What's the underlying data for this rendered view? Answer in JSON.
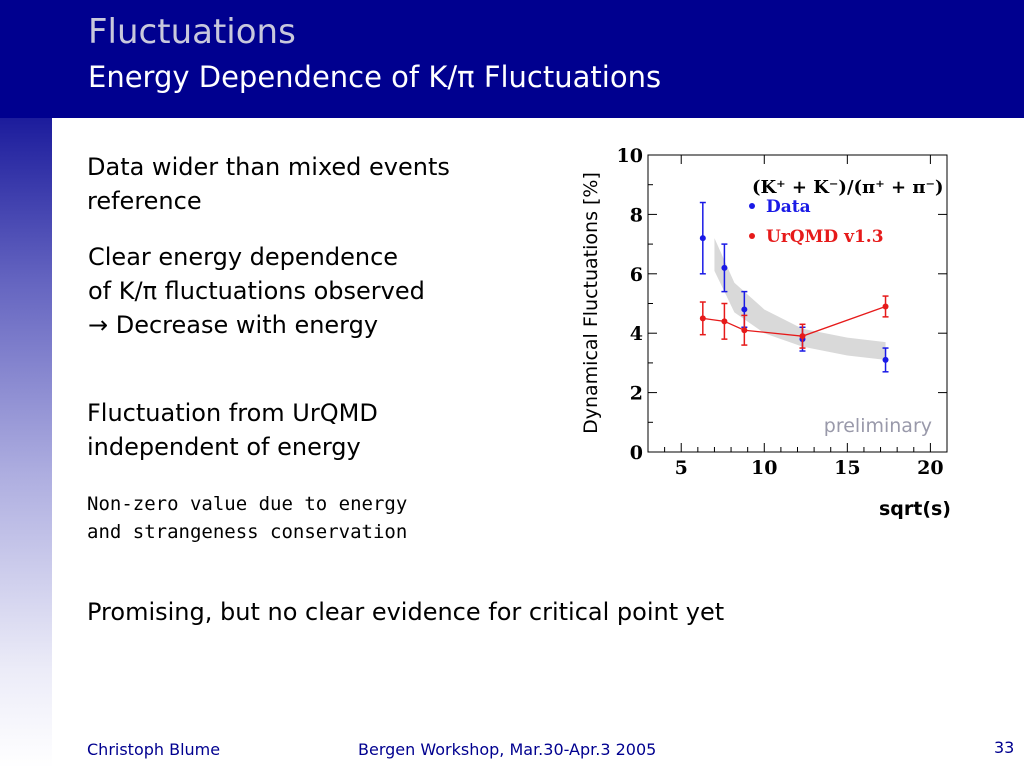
{
  "header": {
    "title": "Fluctuations",
    "subtitle": "Energy Dependence of K/π Fluctuations"
  },
  "bullets": {
    "b1": [
      "Data wider than mixed events",
      "reference"
    ],
    "b2": [
      "Clear energy dependence",
      "of K/π fluctuations observed",
      "→ Decrease with energy"
    ],
    "b3": [
      "Fluctuation from UrQMD",
      "independent of energy"
    ],
    "b4": [
      "Non-zero value due to energy",
      "and strangeness conservation"
    ],
    "b5": "Promising, but no clear evidence for critical point yet"
  },
  "footer": {
    "author": "Christoph Blume",
    "event": "Bergen Workshop, Mar.30-Apr.3 2005",
    "page": "33"
  },
  "colors": {
    "header_bg": "#00008f",
    "data": "#1a1ae6",
    "urqmd": "#e61a1a",
    "band": "#d9d9d9"
  },
  "chart_data": {
    "type": "scatter",
    "title": "(K⁺ + K⁻)/(π⁺ + π⁻)",
    "xlabel": "sqrt(s)",
    "ylabel": "Dynamical Fluctuations [%]",
    "xlim": [
      3,
      21
    ],
    "ylim": [
      0,
      10
    ],
    "xticks": [
      5,
      10,
      15,
      20
    ],
    "yticks": [
      0,
      2,
      4,
      6,
      8,
      10
    ],
    "annotation": "preliminary",
    "series": [
      {
        "name": "Data",
        "color": "#1a1ae6",
        "connected": false,
        "x": [
          6.3,
          7.6,
          8.8,
          12.3,
          17.3
        ],
        "y": [
          7.2,
          6.2,
          4.8,
          3.8,
          3.1
        ],
        "err": [
          1.2,
          0.8,
          0.6,
          0.4,
          0.4
        ]
      },
      {
        "name": "UrQMD v1.3",
        "color": "#e61a1a",
        "connected": true,
        "x": [
          6.3,
          7.6,
          8.8,
          12.3,
          17.3
        ],
        "y": [
          4.5,
          4.4,
          4.1,
          3.9,
          4.9
        ],
        "err": [
          0.55,
          0.6,
          0.5,
          0.4,
          0.35
        ]
      }
    ],
    "band": {
      "x": [
        7.0,
        8.2,
        10.0,
        12.3,
        15.0,
        17.3
      ],
      "upper": [
        7.2,
        5.7,
        4.8,
        4.15,
        3.85,
        3.7
      ],
      "lower": [
        6.1,
        4.7,
        4.0,
        3.55,
        3.25,
        3.1
      ]
    }
  }
}
